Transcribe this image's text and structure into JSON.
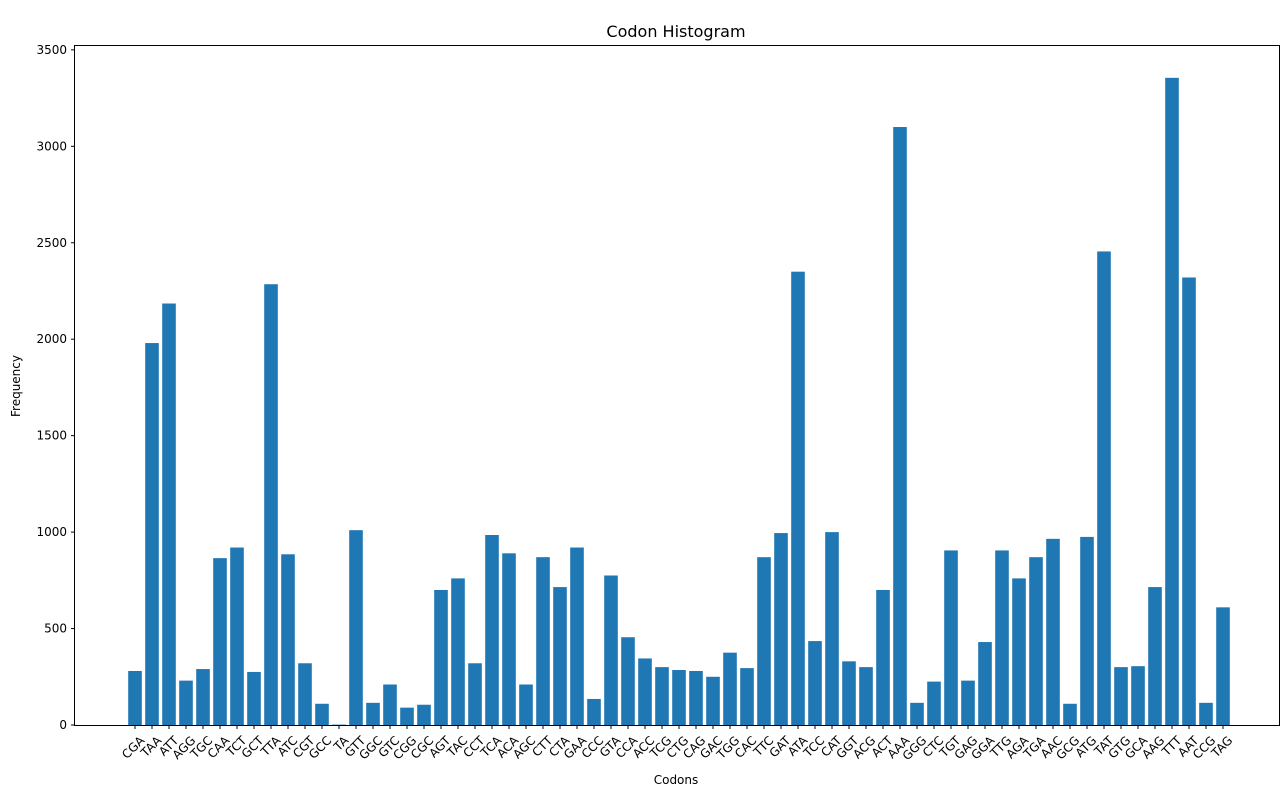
{
  "chart_data": {
    "type": "bar",
    "title": "Codon Histogram",
    "xlabel": "Codons",
    "ylabel": "Frequency",
    "ylim": [
      0,
      3520
    ],
    "yticks": [
      0,
      500,
      1000,
      1500,
      2000,
      2500,
      3000,
      3500
    ],
    "grid": false,
    "bar_color": "#1f77b4",
    "categories": [
      "CGA",
      "TAA",
      "ATT",
      "AGG",
      "TGC",
      "CAA",
      "TCT",
      "GCT",
      "TTA",
      "ATC",
      "CGT",
      "GCC",
      "TA",
      "GTT",
      "GGC",
      "GTC",
      "CGG",
      "CGC",
      "AGT",
      "TAC",
      "CCT",
      "TCA",
      "ACA",
      "AGC",
      "CTT",
      "CTA",
      "GAA",
      "CCC",
      "GTA",
      "CCA",
      "ACC",
      "TCG",
      "CTG",
      "CAG",
      "GAC",
      "TGG",
      "CAC",
      "TTC",
      "GAT",
      "ATA",
      "TCC",
      "CAT",
      "GGT",
      "ACG",
      "ACT",
      "AAA",
      "GGG",
      "CTC",
      "TGT",
      "GAG",
      "GGA",
      "TTG",
      "AGA",
      "TGA",
      "AAC",
      "GCG",
      "ATG",
      "TAT",
      "GTG",
      "GCA",
      "AAG",
      "TTT",
      "AAT",
      "CCG",
      "TAG"
    ],
    "values": [
      280,
      1980,
      2185,
      230,
      290,
      865,
      920,
      275,
      2285,
      885,
      320,
      110,
      2,
      1010,
      115,
      210,
      90,
      105,
      700,
      760,
      320,
      985,
      890,
      210,
      870,
      715,
      920,
      135,
      775,
      455,
      345,
      300,
      285,
      280,
      250,
      375,
      295,
      870,
      995,
      2350,
      435,
      1000,
      330,
      300,
      700,
      3100,
      115,
      225,
      905,
      230,
      430,
      905,
      760,
      870,
      965,
      110,
      975,
      2455,
      300,
      305,
      715,
      3355,
      2320,
      115,
      610
    ]
  }
}
